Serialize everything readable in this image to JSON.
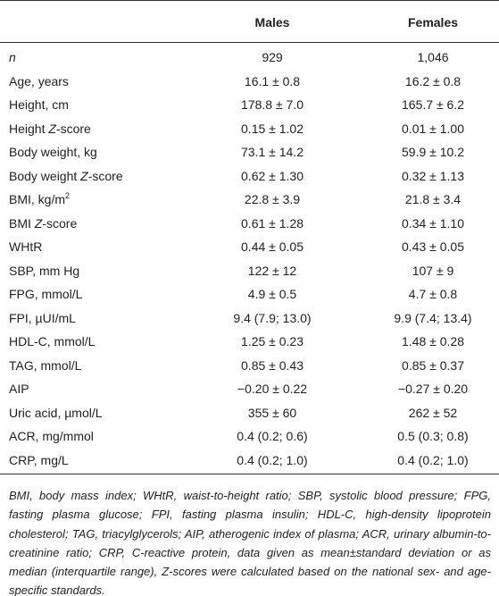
{
  "table": {
    "header": [
      "Males",
      "Females"
    ],
    "rows": [
      {
        "label": [
          {
            "text": "n",
            "italic": true
          }
        ],
        "males": "929",
        "females": "1,046"
      },
      {
        "label": [
          {
            "text": "Age, years"
          }
        ],
        "males": "16.1 ± 0.8",
        "females": "16.2 ± 0.8"
      },
      {
        "label": [
          {
            "text": "Height, cm"
          }
        ],
        "males": "178.8 ± 7.0",
        "females": "165.7 ± 6.2"
      },
      {
        "label": [
          {
            "text": "Height "
          },
          {
            "text": "Z",
            "italic": true
          },
          {
            "text": "-score"
          }
        ],
        "males": "0.15 ± 1.02",
        "females": "0.01 ± 1.00"
      },
      {
        "label": [
          {
            "text": "Body weight, kg"
          }
        ],
        "males": "73.1 ± 14.2",
        "females": "59.9 ± 10.2"
      },
      {
        "label": [
          {
            "text": "Body weight "
          },
          {
            "text": "Z",
            "italic": true
          },
          {
            "text": "-score"
          }
        ],
        "males": "0.62 ± 1.30",
        "females": "0.32 ± 1.13"
      },
      {
        "label": [
          {
            "text": "BMI, kg/m"
          },
          {
            "text": "2",
            "sup": true
          }
        ],
        "males": "22.8 ± 3.9",
        "females": "21.8 ± 3.4"
      },
      {
        "label": [
          {
            "text": "BMI "
          },
          {
            "text": "Z",
            "italic": true
          },
          {
            "text": "-score"
          }
        ],
        "males": "0.61 ± 1.28",
        "females": "0.34 ± 1.10"
      },
      {
        "label": [
          {
            "text": "WHtR"
          }
        ],
        "males": "0.44 ± 0.05",
        "females": "0.43 ± 0.05"
      },
      {
        "label": [
          {
            "text": "SBP, mm Hg"
          }
        ],
        "males": "122 ± 12",
        "females": "107 ± 9"
      },
      {
        "label": [
          {
            "text": "FPG, mmol/L"
          }
        ],
        "males": "4.9 ± 0.5",
        "females": "4.7 ± 0.8"
      },
      {
        "label": [
          {
            "text": "FPI, µUI/mL"
          }
        ],
        "males": "9.4 (7.9; 13.0)",
        "females": "9.9 (7.4; 13.4)"
      },
      {
        "label": [
          {
            "text": "HDL-C, mmol/L"
          }
        ],
        "males": "1.25 ± 0.23",
        "females": "1.48 ± 0.28"
      },
      {
        "label": [
          {
            "text": "TAG, mmol/L"
          }
        ],
        "males": "0.85 ± 0.43",
        "females": "0.85 ± 0.37"
      },
      {
        "label": [
          {
            "text": "AIP"
          }
        ],
        "males": "−0.20 ± 0.22",
        "females": "−0.27 ± 0.20"
      },
      {
        "label": [
          {
            "text": "Uric acid, µmol/L"
          }
        ],
        "males": "355 ± 60",
        "females": "262 ± 52"
      },
      {
        "label": [
          {
            "text": "ACR, mg/mmol"
          }
        ],
        "males": "0.4 (0.2; 0.6)",
        "females": "0.5 (0.3; 0.8)"
      },
      {
        "label": [
          {
            "text": "CRP, mg/L"
          }
        ],
        "males": "0.4 (0.2; 1.0)",
        "females": "0.4 (0.2; 1.0)"
      }
    ]
  },
  "footnote": "BMI, body mass index; WHtR, waist-to-height ratio; SBP, systolic blood pressure; FPG, fasting plasma glucose; FPI, fasting plasma insulin; HDL-C, high-density lipoprotein cholesterol; TAG, triacylglycerols; AIP, atherogenic index of plasma; ACR, urinary albumin-to-creatinine ratio; CRP, C-reactive protein, data given as mean±standard deviation or as median (interquartile range), Z-scores were calculated based on the national sex- and age-specific standards."
}
